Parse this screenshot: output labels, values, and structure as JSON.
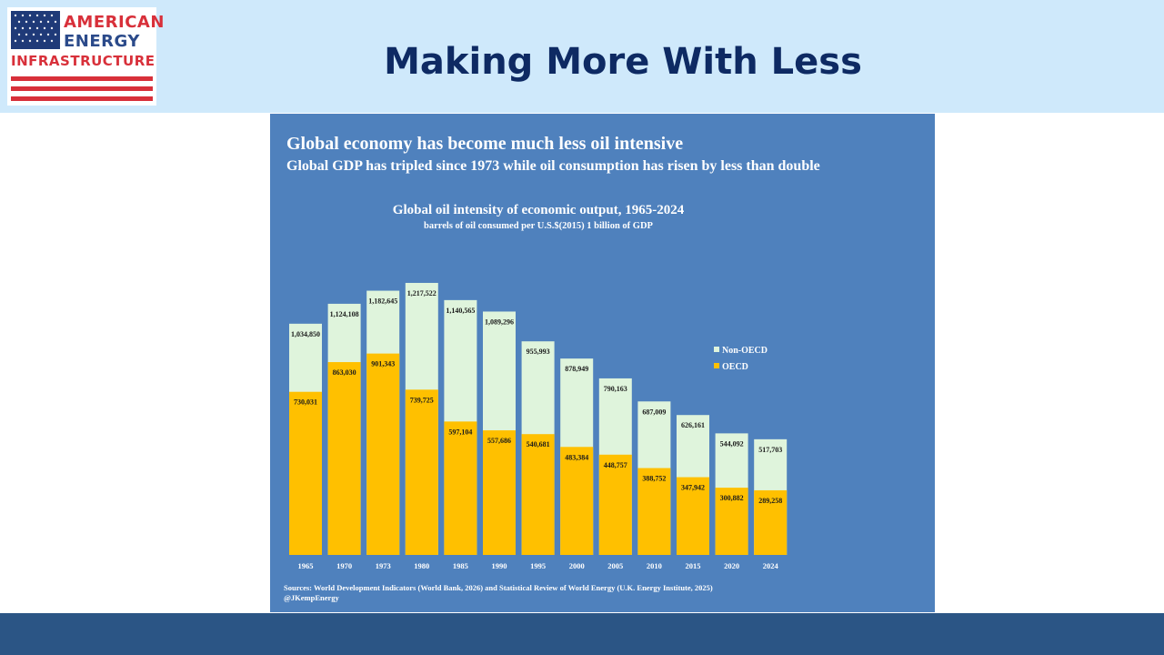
{
  "header": {
    "logo": {
      "line1": "AMERICAN",
      "line2": "ENERGY",
      "line3": "INFRASTRUCTURE"
    },
    "title": "Making More With Less"
  },
  "colors": {
    "header_bg": "#cfe9fb",
    "panel_bg": "#4f81bd",
    "non_oecd": "#dff4dc",
    "oecd": "#ffc000",
    "title_text": "#0e2a63",
    "footer_bar": "#2b5585"
  },
  "chart_panel": {
    "headline": "Global economy has become much less oil intensive",
    "subheadline": "Global GDP has tripled since 1973 while oil consumption has risen by less than double",
    "sources": "Sources: World Development Indicators (World Bank, 2026) and Statistical Review of World Energy (U.K. Energy Institute, 2025)",
    "credit": "@JKempEnergy"
  },
  "chart_data": {
    "type": "bar",
    "stacked": false,
    "overlapping": true,
    "title": "Global oil intensity of economic output, 1965-2024",
    "subtitle": "barrels of oil consumed per U.S.$(2015) 1 billion of GDP",
    "categories": [
      "1965",
      "1970",
      "1973",
      "1980",
      "1985",
      "1990",
      "1995",
      "2000",
      "2005",
      "2010",
      "2015",
      "2020",
      "2024"
    ],
    "series": [
      {
        "name": "Non-OECD",
        "values": [
          1034850,
          1124108,
          1182645,
          1217522,
          1140565,
          1089296,
          955993,
          878949,
          790163,
          687009,
          626161,
          544092,
          517703
        ],
        "labels": [
          "1,034,850",
          "1,124,108",
          "1,182,645",
          "1,217,522",
          "1,140,565",
          "1,089,296",
          "955,993",
          "878,949",
          "790,163",
          "687,009",
          "626,161",
          "544,092",
          "517,703"
        ]
      },
      {
        "name": "OECD",
        "values": [
          730031,
          863030,
          901343,
          739725,
          597104,
          557686,
          540681,
          483384,
          448757,
          388752,
          347942,
          300882,
          289258
        ],
        "labels": [
          "730,031",
          "863,030",
          "901,343",
          "739,725",
          "597,104",
          "557,686",
          "540,681",
          "483,384",
          "448,757",
          "388,752",
          "347,942",
          "300,882",
          "289,258"
        ]
      }
    ],
    "legend": "right",
    "grid": false
  }
}
